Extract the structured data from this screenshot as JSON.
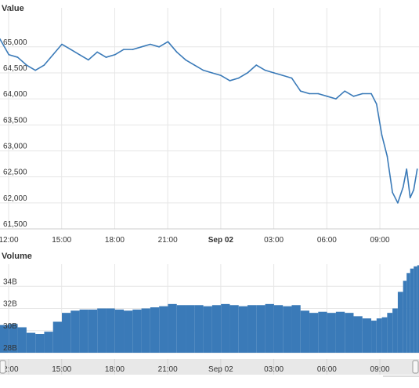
{
  "chart_data": [
    {
      "type": "line",
      "title": "Value",
      "ylabel": "Value",
      "ylim": [
        61500,
        65600
      ],
      "yticks": [
        61500,
        62000,
        62500,
        63000,
        63500,
        64000,
        64500,
        65000
      ],
      "ytick_labels": [
        "61,500",
        "62,000",
        "62,500",
        "63,000",
        "63,500",
        "64,000",
        "64,500",
        "65,000"
      ],
      "xlim": [
        0,
        23.7
      ],
      "xticks": [
        0,
        3,
        6,
        9,
        12,
        15,
        18,
        21
      ],
      "xtick_labels": [
        "12:00",
        "15:00",
        "18:00",
        "21:00",
        "Sep 02",
        "03:00",
        "06:00",
        "09:00"
      ],
      "xtick_bold": [
        false,
        false,
        false,
        false,
        true,
        false,
        false,
        false
      ],
      "x_hours_since_sep01_1200": [
        0,
        0.5,
        1,
        1.5,
        2,
        2.5,
        3,
        3.5,
        4,
        4.5,
        5,
        5.5,
        6,
        6.5,
        7,
        7.5,
        8,
        8.5,
        9,
        9.5,
        10,
        10.5,
        11,
        11.5,
        12,
        12.5,
        13,
        13.5,
        14,
        14.5,
        15,
        15.5,
        16,
        16.5,
        17,
        17.5,
        18,
        18.5,
        19,
        19.5,
        20,
        20.5,
        21,
        21.3,
        21.6,
        21.9,
        22.2,
        22.5,
        22.8,
        23,
        23.2,
        23.4,
        23.6
      ],
      "values": [
        65150,
        64850,
        64800,
        64650,
        64550,
        64650,
        64850,
        65050,
        64950,
        64850,
        64750,
        64900,
        64800,
        64850,
        64950,
        64950,
        65000,
        65050,
        65000,
        65100,
        64900,
        64750,
        64650,
        64550,
        64500,
        64450,
        64350,
        64400,
        64500,
        64650,
        64550,
        64500,
        64450,
        64400,
        64150,
        64100,
        64100,
        64050,
        64000,
        64150,
        64050,
        64100,
        64100,
        63900,
        63300,
        62900,
        62200,
        62000,
        62300,
        62650,
        62100,
        62250,
        62650
      ],
      "grid": true,
      "line_color": "#3a7ab8"
    },
    {
      "type": "bar",
      "title": "Volume",
      "ylabel": "Volume",
      "ylim": [
        28,
        36
      ],
      "yticks": [
        28,
        30,
        32,
        34
      ],
      "ytick_labels": [
        "28B",
        "30B",
        "32B",
        "34B"
      ],
      "xlim": [
        0,
        23.7
      ],
      "xticks": [
        0,
        3,
        6,
        9,
        12,
        15,
        18,
        21
      ],
      "xtick_labels": [
        "12:00",
        "15:00",
        "18:00",
        "21:00",
        "Sep 02",
        "03:00",
        "06:00",
        "09:00"
      ],
      "x_hours_since_sep01_1200": [
        0,
        0.5,
        1,
        1.5,
        2,
        2.5,
        3,
        3.5,
        4,
        4.5,
        5,
        5.5,
        6,
        6.5,
        7,
        7.5,
        8,
        8.5,
        9,
        9.5,
        10,
        10.5,
        11,
        11.5,
        12,
        12.5,
        13,
        13.5,
        14,
        14.5,
        15,
        15.5,
        16,
        16.5,
        17,
        17.5,
        18,
        18.5,
        19,
        19.5,
        20,
        20.5,
        21,
        21.3,
        21.6,
        21.9,
        22.2,
        22.5,
        22.8,
        23,
        23.2,
        23.4,
        23.6
      ],
      "values": [
        30.5,
        30.6,
        30.3,
        29.8,
        29.7,
        29.9,
        30.8,
        31.6,
        31.8,
        31.9,
        31.9,
        32.0,
        32.0,
        31.9,
        31.8,
        31.9,
        32.0,
        32.1,
        32.2,
        32.4,
        32.3,
        32.3,
        32.3,
        32.2,
        32.3,
        32.4,
        32.3,
        32.2,
        32.3,
        32.3,
        32.4,
        32.3,
        32.2,
        32.3,
        31.8,
        31.6,
        31.7,
        31.6,
        31.7,
        31.6,
        31.3,
        31.1,
        30.9,
        31.1,
        31.2,
        31.6,
        32.0,
        33.5,
        34.5,
        35.2,
        35.6,
        35.8,
        35.9
      ],
      "grid": true,
      "bar_color": "#3a7ab8"
    }
  ],
  "navigator": {
    "tick_labels": [
      "12:00",
      "15:00",
      "18:00",
      "21:00",
      "Sep 02",
      "03:00",
      "06:00",
      "09:00"
    ]
  },
  "colors": {
    "line": "#3a7ab8",
    "bar": "#3a7ab8",
    "grid": "#e6e6e6",
    "navigator_bg": "#e8e8e8"
  }
}
